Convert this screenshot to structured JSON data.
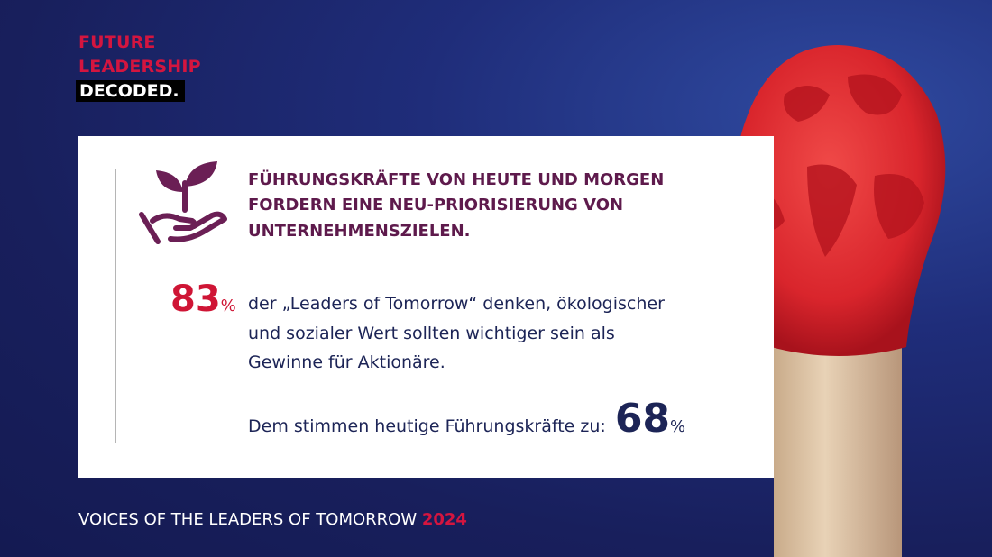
{
  "logo": {
    "lines": [
      "FUTURE",
      "LEADERSHIP"
    ],
    "badge": "DECODED."
  },
  "headline": {
    "lines": [
      "FÜHRUNGSKRÄFTE VON HEUTE UND MORGEN",
      "FORDERN EINE NEU-PRIORISIERUNG VON",
      "UNTERNEHMENSZIELEN."
    ]
  },
  "stat_1": {
    "value": 83,
    "unit": "%",
    "lines": [
      "der „Leaders of Tomorrow“ denken, ökologischer",
      "und sozialer Wert sollten wichtiger sein als",
      "Gewinne für Aktionäre."
    ]
  },
  "stat_2": {
    "text": "Dem stimmen heutige Führungskräfte zu:",
    "value": 68,
    "unit": "%"
  },
  "footer": {
    "text": "VOICES OF THE LEADERS OF TOMORROW",
    "year": "2024"
  }
}
